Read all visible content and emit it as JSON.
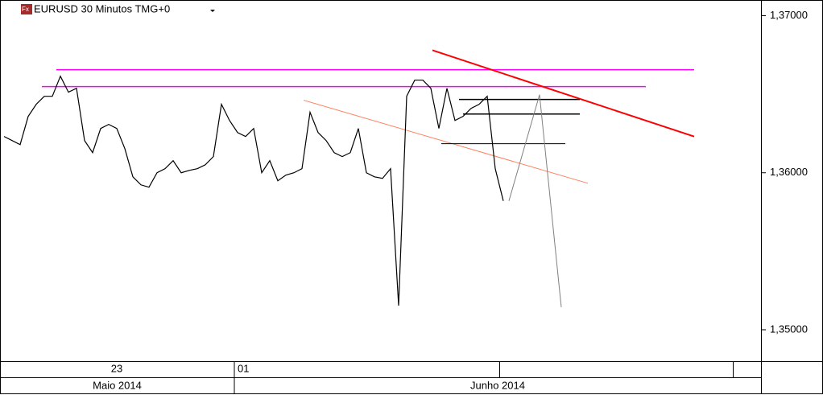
{
  "chart_data": {
    "type": "line",
    "title": "EURUSD 30 Minutos TMG+0",
    "categories": [
      null,
      null,
      null,
      null,
      null,
      null,
      null,
      null,
      null,
      null,
      null,
      null,
      null,
      null,
      "23",
      null,
      null,
      null,
      null,
      null,
      null,
      null,
      null,
      null,
      null,
      null,
      null,
      null,
      null,
      "01",
      null,
      null,
      null,
      null,
      null,
      null,
      null,
      null,
      null,
      null,
      null,
      null,
      null,
      null,
      null,
      null,
      null,
      null,
      null,
      null,
      null,
      null,
      null,
      null,
      null,
      null,
      null,
      null,
      null,
      null,
      null,
      null,
      null
    ],
    "month_categories": [
      "Maio 2014",
      null,
      null,
      null,
      null,
      null,
      null,
      null,
      null,
      null,
      null,
      null,
      null,
      null,
      null,
      null,
      null,
      null,
      null,
      null,
      null,
      null,
      null,
      null,
      null,
      null,
      null,
      null,
      null,
      "Junho 2014",
      null,
      null,
      null,
      null,
      null,
      null,
      null,
      null,
      null,
      null,
      null,
      null,
      null,
      null,
      null,
      null,
      null,
      null,
      null,
      null,
      null,
      null,
      null,
      null,
      null,
      null,
      null,
      null,
      null,
      null,
      null,
      null,
      null
    ],
    "series": [
      {
        "color": "#000000",
        "values": [
          1.36231,
          1.36205,
          1.36179,
          1.36359,
          1.36436,
          1.36487,
          1.36487,
          1.36615,
          1.36513,
          1.36538,
          1.36205,
          1.36128,
          1.36282,
          1.36308,
          1.36282,
          1.36154,
          1.35974,
          1.35923,
          1.35908,
          1.36,
          1.36026,
          1.36077,
          1.36,
          1.36015,
          1.36026,
          1.36051,
          1.36103,
          1.36436,
          1.36333,
          1.36256,
          1.36231,
          1.36282,
          1.36,
          1.36077,
          1.35949,
          1.35985,
          1.36,
          1.36026,
          1.36385,
          1.36256,
          1.36205,
          1.36128,
          1.36103,
          1.36128,
          1.36282,
          1.36,
          1.35974,
          1.35964,
          1.36026,
          1.35154,
          1.36487,
          1.3659,
          1.3659,
          1.36538,
          1.36282,
          1.36538,
          1.36333,
          1.36359,
          1.3641,
          1.36436,
          1.36487,
          1.36026,
          1.35821
        ]
      }
    ],
    "ylim": [
      1.348,
      1.371
    ],
    "yticks": [
      {
        "value": 1.35,
        "label": "1,35000"
      },
      {
        "value": 1.36,
        "label": "1,36000"
      },
      {
        "value": 1.37,
        "label": "1,37000"
      }
    ],
    "drawings": [
      {
        "color": "#ff00ff",
        "width": 1.5,
        "x": [
          6.5,
          85.7
        ],
        "y": [
          1.36656,
          1.36656
        ]
      },
      {
        "color": "#ff00ff",
        "width": 1.5,
        "x": [
          4.7,
          79.7
        ],
        "y": [
          1.36549,
          1.36549
        ]
      },
      {
        "color": "#ff0000",
        "width": 2,
        "x": [
          53.2,
          85.7
        ],
        "y": [
          1.3678,
          1.36231
        ]
      },
      {
        "color": "#ff8060",
        "width": 1,
        "x": [
          37.2,
          72.5
        ],
        "y": [
          1.36462,
          1.35933
        ]
      },
      {
        "color": "#000000",
        "width": 1.5,
        "x": [
          56.5,
          71.5
        ],
        "y": [
          1.36467,
          1.36467
        ]
      },
      {
        "color": "#000000",
        "width": 1.5,
        "x": [
          57,
          71.5
        ],
        "y": [
          1.36374,
          1.36374
        ]
      },
      {
        "color": "#000000",
        "width": 1,
        "x": [
          54.3,
          69.7
        ],
        "y": [
          1.36185,
          1.36185
        ]
      },
      {
        "color": "#808080",
        "width": 1,
        "x": [
          62.7,
          66.5,
          69.2
        ],
        "y": [
          1.35821,
          1.36497,
          1.35144
        ]
      }
    ]
  }
}
